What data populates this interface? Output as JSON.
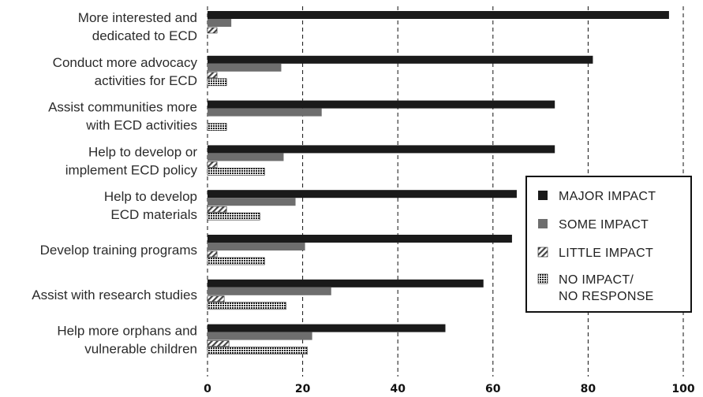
{
  "chart_data": {
    "type": "bar",
    "orientation": "horizontal",
    "categories": [
      [
        "More interested and",
        "dedicated to ECD"
      ],
      [
        "Conduct more advocacy",
        "activities for ECD"
      ],
      [
        "Assist communities more",
        "with ECD activities"
      ],
      [
        "Help to develop or",
        "implement ECD policy"
      ],
      [
        "Help to develop",
        "ECD materials"
      ],
      [
        "Develop training programs"
      ],
      [
        "Assist with research studies"
      ],
      [
        "Help more orphans and",
        "vulnerable children"
      ]
    ],
    "series": [
      {
        "name": "MAJOR IMPACT",
        "color": "#1a1a1a",
        "pattern": "solid",
        "values": [
          97,
          81,
          73,
          73,
          65,
          64,
          58,
          50
        ]
      },
      {
        "name": "SOME IMPACT",
        "color": "#6e6e6e",
        "pattern": "solid",
        "values": [
          5,
          15.5,
          24,
          16,
          18.5,
          20.5,
          26,
          22
        ]
      },
      {
        "name": "LITTLE IMPACT",
        "color": "#555555",
        "pattern": "diagonal-hatch",
        "values": [
          2,
          2,
          0,
          2,
          4,
          2,
          3.5,
          4.5
        ]
      },
      {
        "name": "NO IMPACT/\nNO RESPONSE",
        "color": "#222222",
        "pattern": "grid",
        "values": [
          0,
          4,
          4,
          12,
          11,
          12,
          16.5,
          21
        ]
      }
    ],
    "xlim": [
      0,
      100
    ],
    "xticks": [
      0,
      20,
      40,
      60,
      80,
      100
    ],
    "grid": "vertical dashed",
    "legend_position": "right"
  }
}
